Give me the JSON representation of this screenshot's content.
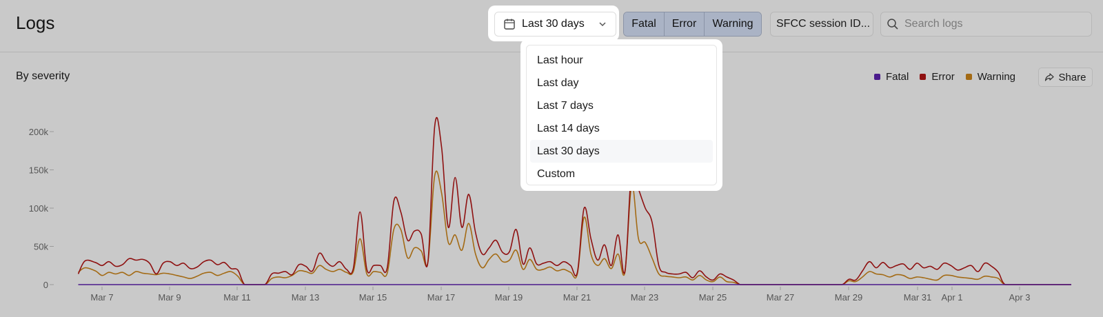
{
  "header": {
    "title": "Logs",
    "range_label": "Last 30 days",
    "severity_buttons": [
      "Fatal",
      "Error",
      "Warning"
    ],
    "session_label": "SFCC session ID...",
    "search_placeholder": "Search logs"
  },
  "dropdown": {
    "options": [
      "Last hour",
      "Last day",
      "Last 7 days",
      "Last 14 days",
      "Last 30 days",
      "Custom"
    ],
    "selected": "Last 30 days"
  },
  "panel": {
    "title": "By severity",
    "share_label": "Share"
  },
  "colors": {
    "fatal": "#4a1b8c",
    "error": "#8e1010",
    "warning": "#a36a14"
  },
  "chart_data": {
    "type": "line",
    "ylim": [
      0,
      200000
    ],
    "yticks": [
      0,
      50000,
      100000,
      150000,
      200000
    ],
    "ytick_labels": [
      "0",
      "50k",
      "100k",
      "150k",
      "200k"
    ],
    "x_unit": "day",
    "xlim": [
      -0.7,
      29.2
    ],
    "xticks": [
      0,
      2,
      4,
      6,
      8,
      10,
      12,
      14,
      16,
      18,
      20,
      22,
      24,
      25,
      27
    ],
    "xtick_labels": [
      "Mar 7",
      "Mar 9",
      "Mar 11",
      "Mar 13",
      "Mar 15",
      "Mar 17",
      "Mar 19",
      "Mar 21",
      "Mar 23",
      "Mar 25",
      "Mar 27",
      "Mar 29",
      "Mar 31",
      "Apr 1",
      "Apr 3"
    ],
    "legend": [
      "Fatal",
      "Error",
      "Warning"
    ],
    "legend_position": "top-right",
    "series": [
      {
        "name": "Error",
        "points": [
          [
            -0.7,
            14000
          ],
          [
            -0.5,
            31000
          ],
          [
            -0.2,
            29000
          ],
          [
            0.0,
            25000
          ],
          [
            0.2,
            30000
          ],
          [
            0.4,
            24000
          ],
          [
            0.6,
            26000
          ],
          [
            0.8,
            34000
          ],
          [
            1.0,
            32000
          ],
          [
            1.2,
            33000
          ],
          [
            1.4,
            28000
          ],
          [
            1.6,
            14000
          ],
          [
            1.8,
            28000
          ],
          [
            2.0,
            30000
          ],
          [
            2.2,
            25000
          ],
          [
            2.4,
            28000
          ],
          [
            2.6,
            21000
          ],
          [
            2.8,
            23000
          ],
          [
            3.0,
            30000
          ],
          [
            3.2,
            32000
          ],
          [
            3.4,
            26000
          ],
          [
            3.6,
            29000
          ],
          [
            3.8,
            21000
          ],
          [
            4.0,
            19000
          ],
          [
            4.2,
            0
          ],
          [
            4.5,
            0
          ],
          [
            4.8,
            0
          ],
          [
            5.0,
            14000
          ],
          [
            5.2,
            15000
          ],
          [
            5.4,
            17000
          ],
          [
            5.6,
            13000
          ],
          [
            5.8,
            26000
          ],
          [
            6.0,
            24000
          ],
          [
            6.2,
            18000
          ],
          [
            6.4,
            41000
          ],
          [
            6.6,
            30000
          ],
          [
            6.8,
            24000
          ],
          [
            7.0,
            30000
          ],
          [
            7.2,
            20000
          ],
          [
            7.4,
            21000
          ],
          [
            7.6,
            95000
          ],
          [
            7.8,
            20000
          ],
          [
            8.0,
            25000
          ],
          [
            8.2,
            25000
          ],
          [
            8.4,
            22000
          ],
          [
            8.6,
            110000
          ],
          [
            8.8,
            95000
          ],
          [
            9.0,
            58000
          ],
          [
            9.2,
            70000
          ],
          [
            9.4,
            66000
          ],
          [
            9.6,
            30000
          ],
          [
            9.8,
            208000
          ],
          [
            10.0,
            180000
          ],
          [
            10.2,
            75000
          ],
          [
            10.4,
            140000
          ],
          [
            10.6,
            75000
          ],
          [
            10.8,
            118000
          ],
          [
            11.0,
            68000
          ],
          [
            11.2,
            40000
          ],
          [
            11.4,
            48000
          ],
          [
            11.6,
            58000
          ],
          [
            11.8,
            42000
          ],
          [
            12.0,
            43000
          ],
          [
            12.2,
            72000
          ],
          [
            12.4,
            27000
          ],
          [
            12.6,
            48000
          ],
          [
            12.8,
            27000
          ],
          [
            13.0,
            28000
          ],
          [
            13.2,
            30000
          ],
          [
            13.4,
            25000
          ],
          [
            13.6,
            30000
          ],
          [
            13.8,
            25000
          ],
          [
            14.0,
            16000
          ],
          [
            14.2,
            100000
          ],
          [
            14.4,
            60000
          ],
          [
            14.6,
            32000
          ],
          [
            14.8,
            52000
          ],
          [
            15.0,
            25000
          ],
          [
            15.2,
            65000
          ],
          [
            15.4,
            17000
          ],
          [
            15.6,
            150000
          ],
          [
            15.8,
            125000
          ],
          [
            16.0,
            100000
          ],
          [
            16.2,
            82000
          ],
          [
            16.4,
            25000
          ],
          [
            16.6,
            16000
          ],
          [
            16.8,
            14000
          ],
          [
            17.0,
            14000
          ],
          [
            17.2,
            16000
          ],
          [
            17.4,
            9000
          ],
          [
            17.6,
            18000
          ],
          [
            17.8,
            10000
          ],
          [
            18.0,
            6000
          ],
          [
            18.2,
            14000
          ],
          [
            18.4,
            10000
          ],
          [
            18.6,
            6000
          ],
          [
            18.8,
            0
          ],
          [
            19.0,
            0
          ],
          [
            19.5,
            0
          ],
          [
            20.0,
            0
          ],
          [
            20.5,
            0
          ],
          [
            21.0,
            0
          ],
          [
            21.5,
            0
          ],
          [
            21.8,
            0
          ],
          [
            22.0,
            7000
          ],
          [
            22.2,
            6000
          ],
          [
            22.4,
            18000
          ],
          [
            22.6,
            30000
          ],
          [
            22.8,
            22000
          ],
          [
            23.0,
            29000
          ],
          [
            23.2,
            22000
          ],
          [
            23.4,
            25000
          ],
          [
            23.6,
            27000
          ],
          [
            23.8,
            20000
          ],
          [
            24.0,
            28000
          ],
          [
            24.2,
            22000
          ],
          [
            24.4,
            24000
          ],
          [
            24.6,
            20000
          ],
          [
            24.8,
            28000
          ],
          [
            25.0,
            25000
          ],
          [
            25.2,
            19000
          ],
          [
            25.4,
            22000
          ],
          [
            25.6,
            25000
          ],
          [
            25.8,
            17000
          ],
          [
            26.0,
            28000
          ],
          [
            26.2,
            24000
          ],
          [
            26.4,
            16000
          ],
          [
            26.6,
            0
          ],
          [
            27.0,
            0
          ],
          [
            28.0,
            0
          ],
          [
            29.2,
            0
          ]
        ]
      },
      {
        "name": "Warning",
        "points": [
          [
            -0.7,
            16000
          ],
          [
            -0.5,
            22000
          ],
          [
            -0.2,
            18000
          ],
          [
            0.0,
            12000
          ],
          [
            0.2,
            16000
          ],
          [
            0.4,
            14000
          ],
          [
            0.6,
            16000
          ],
          [
            0.8,
            12000
          ],
          [
            1.0,
            17000
          ],
          [
            1.2,
            15000
          ],
          [
            1.4,
            14000
          ],
          [
            1.6,
            13000
          ],
          [
            1.8,
            15000
          ],
          [
            2.0,
            14000
          ],
          [
            2.2,
            12000
          ],
          [
            2.4,
            10000
          ],
          [
            2.6,
            8000
          ],
          [
            2.8,
            11000
          ],
          [
            3.0,
            15000
          ],
          [
            3.2,
            16000
          ],
          [
            3.4,
            12000
          ],
          [
            3.6,
            15000
          ],
          [
            3.8,
            17000
          ],
          [
            4.0,
            11000
          ],
          [
            4.2,
            0
          ],
          [
            4.5,
            0
          ],
          [
            4.8,
            0
          ],
          [
            5.0,
            8000
          ],
          [
            5.2,
            10000
          ],
          [
            5.4,
            9000
          ],
          [
            5.6,
            12000
          ],
          [
            5.8,
            18000
          ],
          [
            6.0,
            17000
          ],
          [
            6.2,
            15000
          ],
          [
            6.4,
            25000
          ],
          [
            6.6,
            20000
          ],
          [
            6.8,
            17000
          ],
          [
            7.0,
            20000
          ],
          [
            7.2,
            16000
          ],
          [
            7.4,
            17000
          ],
          [
            7.6,
            60000
          ],
          [
            7.8,
            14000
          ],
          [
            8.0,
            17000
          ],
          [
            8.2,
            16000
          ],
          [
            8.4,
            15000
          ],
          [
            8.6,
            73000
          ],
          [
            8.8,
            72000
          ],
          [
            9.0,
            35000
          ],
          [
            9.2,
            48000
          ],
          [
            9.4,
            44000
          ],
          [
            9.6,
            30000
          ],
          [
            9.8,
            143000
          ],
          [
            10.0,
            120000
          ],
          [
            10.2,
            55000
          ],
          [
            10.4,
            65000
          ],
          [
            10.6,
            45000
          ],
          [
            10.8,
            80000
          ],
          [
            11.0,
            40000
          ],
          [
            11.2,
            22000
          ],
          [
            11.4,
            33000
          ],
          [
            11.6,
            40000
          ],
          [
            11.8,
            30000
          ],
          [
            12.0,
            32000
          ],
          [
            12.2,
            45000
          ],
          [
            12.4,
            20000
          ],
          [
            12.6,
            33000
          ],
          [
            12.8,
            20000
          ],
          [
            13.0,
            20000
          ],
          [
            13.2,
            23000
          ],
          [
            13.4,
            18000
          ],
          [
            13.6,
            20000
          ],
          [
            13.8,
            16000
          ],
          [
            14.0,
            14000
          ],
          [
            14.2,
            88000
          ],
          [
            14.4,
            40000
          ],
          [
            14.6,
            25000
          ],
          [
            14.8,
            34000
          ],
          [
            15.0,
            21000
          ],
          [
            15.2,
            40000
          ],
          [
            15.4,
            16000
          ],
          [
            15.6,
            130000
          ],
          [
            15.8,
            60000
          ],
          [
            16.0,
            55000
          ],
          [
            16.2,
            35000
          ],
          [
            16.4,
            14000
          ],
          [
            16.6,
            11000
          ],
          [
            16.8,
            10000
          ],
          [
            17.0,
            9000
          ],
          [
            17.2,
            10000
          ],
          [
            17.4,
            6000
          ],
          [
            17.6,
            12000
          ],
          [
            17.8,
            6000
          ],
          [
            18.0,
            4000
          ],
          [
            18.2,
            10000
          ],
          [
            18.4,
            4000
          ],
          [
            18.6,
            3000
          ],
          [
            18.8,
            0
          ],
          [
            19.0,
            0
          ],
          [
            19.5,
            0
          ],
          [
            20.0,
            0
          ],
          [
            20.5,
            0
          ],
          [
            21.0,
            0
          ],
          [
            21.5,
            0
          ],
          [
            21.8,
            0
          ],
          [
            22.0,
            5000
          ],
          [
            22.2,
            4000
          ],
          [
            22.4,
            10000
          ],
          [
            22.6,
            17000
          ],
          [
            22.8,
            14000
          ],
          [
            23.0,
            13000
          ],
          [
            23.2,
            10000
          ],
          [
            23.4,
            13000
          ],
          [
            23.6,
            12000
          ],
          [
            23.8,
            8000
          ],
          [
            24.0,
            10000
          ],
          [
            24.2,
            9000
          ],
          [
            24.4,
            7000
          ],
          [
            24.6,
            6000
          ],
          [
            24.8,
            12000
          ],
          [
            25.0,
            12000
          ],
          [
            25.2,
            10000
          ],
          [
            25.4,
            9000
          ],
          [
            25.6,
            8000
          ],
          [
            25.8,
            7000
          ],
          [
            26.0,
            11000
          ],
          [
            26.2,
            10000
          ],
          [
            26.4,
            8000
          ],
          [
            26.6,
            0
          ],
          [
            27.0,
            0
          ],
          [
            28.0,
            0
          ],
          [
            29.2,
            0
          ]
        ]
      },
      {
        "name": "Fatal",
        "points": [
          [
            -0.7,
            0
          ],
          [
            29.2,
            0
          ]
        ]
      }
    ]
  }
}
